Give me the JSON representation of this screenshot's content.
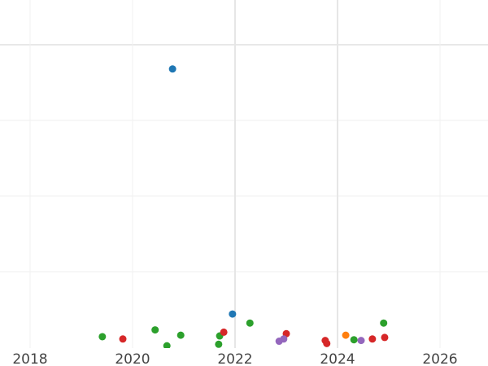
{
  "chart_data": {
    "type": "scatter",
    "title": "",
    "xlabel": "",
    "ylabel": "",
    "x_ticks": [
      "2018",
      "2020",
      "2022",
      "2024",
      "2026"
    ],
    "xlim": [
      2018,
      2026.9
    ],
    "ylim": [
      0,
      4.1
    ],
    "grid": true,
    "y_tick_labels_visible": false,
    "colors": {
      "blue": "#1f77b4",
      "orange": "#ff7f0e",
      "green": "#2ca02c",
      "red": "#d62728",
      "purple": "#9467bd"
    },
    "points": [
      {
        "x": 2019.41,
        "y": 0.14,
        "color": "green"
      },
      {
        "x": 2019.81,
        "y": 0.11,
        "color": "red"
      },
      {
        "x": 2020.78,
        "y": 3.68,
        "color": "blue"
      },
      {
        "x": 2020.44,
        "y": 0.23,
        "color": "green"
      },
      {
        "x": 2020.67,
        "y": 0.02,
        "color": "green"
      },
      {
        "x": 2020.94,
        "y": 0.16,
        "color": "green"
      },
      {
        "x": 2021.7,
        "y": 0.15,
        "color": "green"
      },
      {
        "x": 2021.68,
        "y": 0.04,
        "color": "green"
      },
      {
        "x": 2021.78,
        "y": 0.2,
        "color": "red"
      },
      {
        "x": 2021.95,
        "y": 0.44,
        "color": "blue"
      },
      {
        "x": 2022.29,
        "y": 0.32,
        "color": "green"
      },
      {
        "x": 2023.0,
        "y": 0.18,
        "color": "red"
      },
      {
        "x": 2022.86,
        "y": 0.08,
        "color": "purple"
      },
      {
        "x": 2022.95,
        "y": 0.11,
        "color": "purple"
      },
      {
        "x": 2023.76,
        "y": 0.09,
        "color": "red"
      },
      {
        "x": 2023.79,
        "y": 0.05,
        "color": "red"
      },
      {
        "x": 2024.16,
        "y": 0.16,
        "color": "orange"
      },
      {
        "x": 2024.32,
        "y": 0.1,
        "color": "green"
      },
      {
        "x": 2024.46,
        "y": 0.09,
        "color": "purple"
      },
      {
        "x": 2024.68,
        "y": 0.11,
        "color": "red"
      },
      {
        "x": 2024.9,
        "y": 0.32,
        "color": "green"
      },
      {
        "x": 2024.92,
        "y": 0.13,
        "color": "red"
      }
    ]
  }
}
